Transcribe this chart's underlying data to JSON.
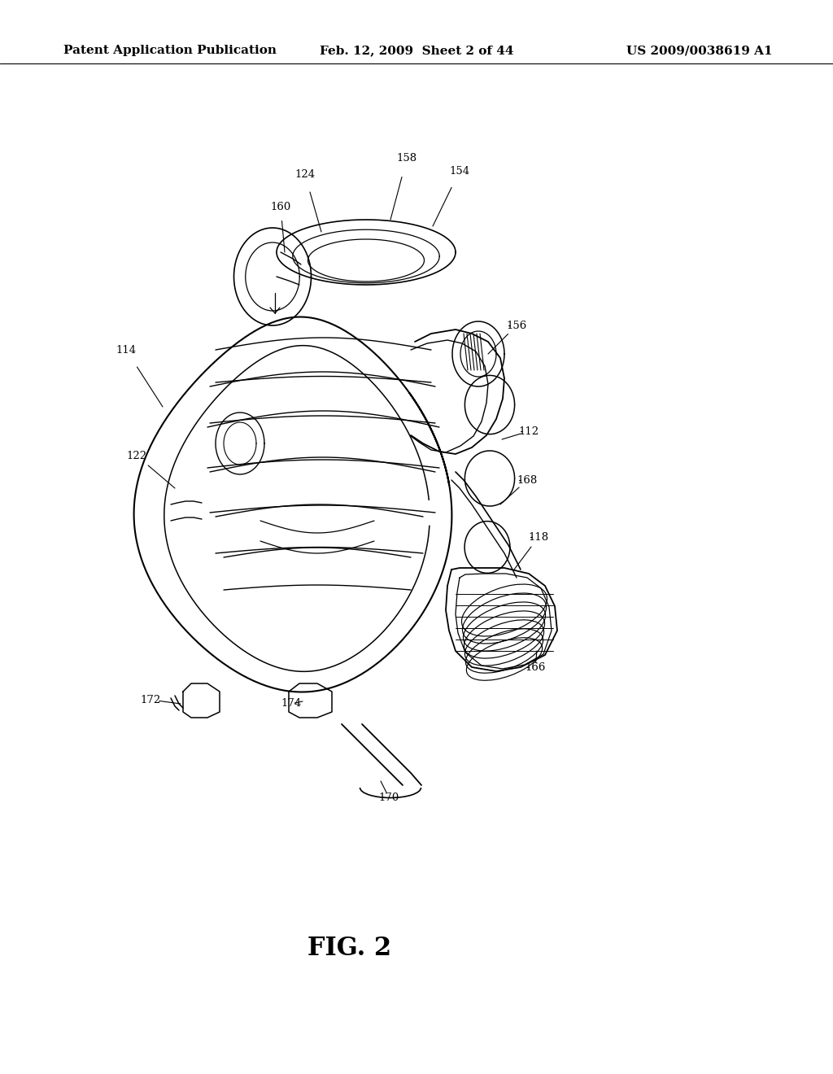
{
  "background_color": "#ffffff",
  "header_left": "Patent Application Publication",
  "header_center": "Feb. 12, 2009  Sheet 2 of 44",
  "header_right": "US 2009/0038619 A1",
  "fig_label": "FIG. 2",
  "header_fontsize": 11,
  "fig_label_fontsize": 22,
  "line_color": "#000000",
  "label_fontsize": 9.5
}
